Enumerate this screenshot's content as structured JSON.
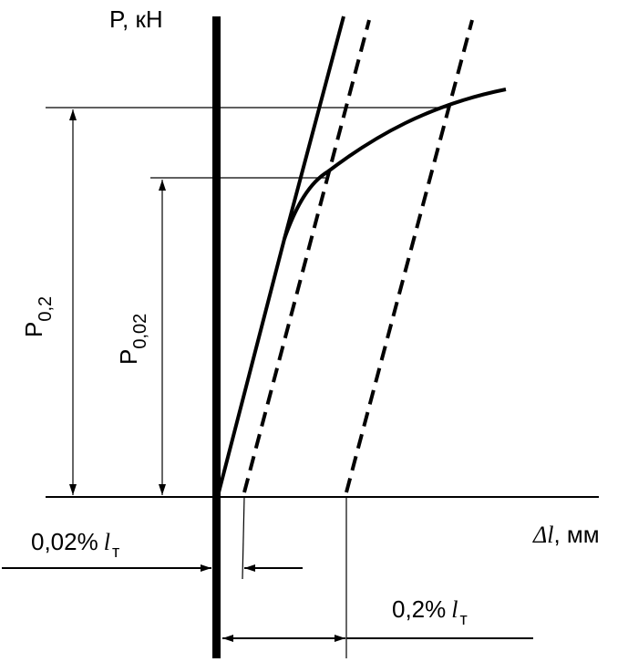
{
  "y_axis_label": "P, кН",
  "x_axis_label": {
    "symbol": "Δl",
    "unit": ", мм"
  },
  "p02_label": {
    "main": "P",
    "sub": "0,2"
  },
  "p002_label": {
    "main": "P",
    "sub": "0,02"
  },
  "offset_small_label": {
    "value": "0,02%",
    "symbol": "l",
    "sub": "т"
  },
  "offset_large_label": {
    "value": "0,2%",
    "symbol": "l",
    "sub": "т"
  }
}
